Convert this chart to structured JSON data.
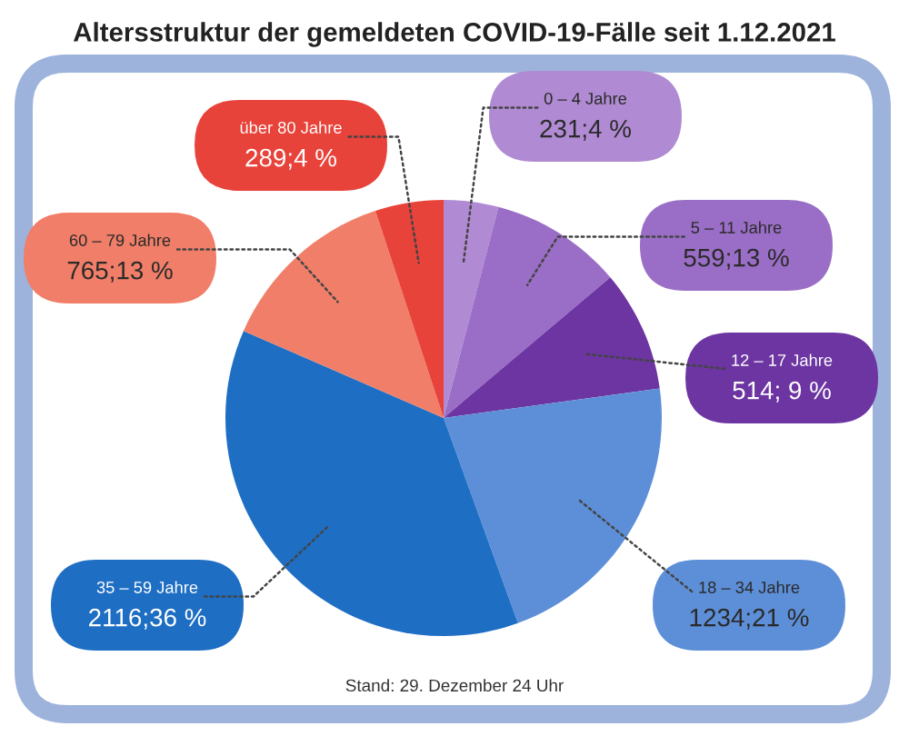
{
  "chart_data": {
    "type": "pie",
    "title": "Altersstruktur der gemeldeten COVID-19-Fälle seit 1.12.2021",
    "categories": [
      "0 – 4 Jahre",
      "5 – 11 Jahre",
      "12 – 17 Jahre",
      "18 – 34 Jahre",
      "35 – 59 Jahre",
      "60 – 79 Jahre",
      "über 80 Jahre"
    ],
    "values": [
      231,
      559,
      514,
      1234,
      2116,
      765,
      289
    ],
    "colors": [
      "#b08ad2",
      "#9a6ec6",
      "#6c35a2",
      "#5d8fd8",
      "#1e6ec4",
      "#f07e68",
      "#e8433a"
    ],
    "value_labels": [
      "231;4 %",
      "559;13 %",
      "514; 9 %",
      "1234;21 %",
      "2116;36 %",
      "765;13 %",
      "289;4 %"
    ],
    "annotations": [
      "Stand: 29. Dezember 24 Uhr"
    ]
  }
}
